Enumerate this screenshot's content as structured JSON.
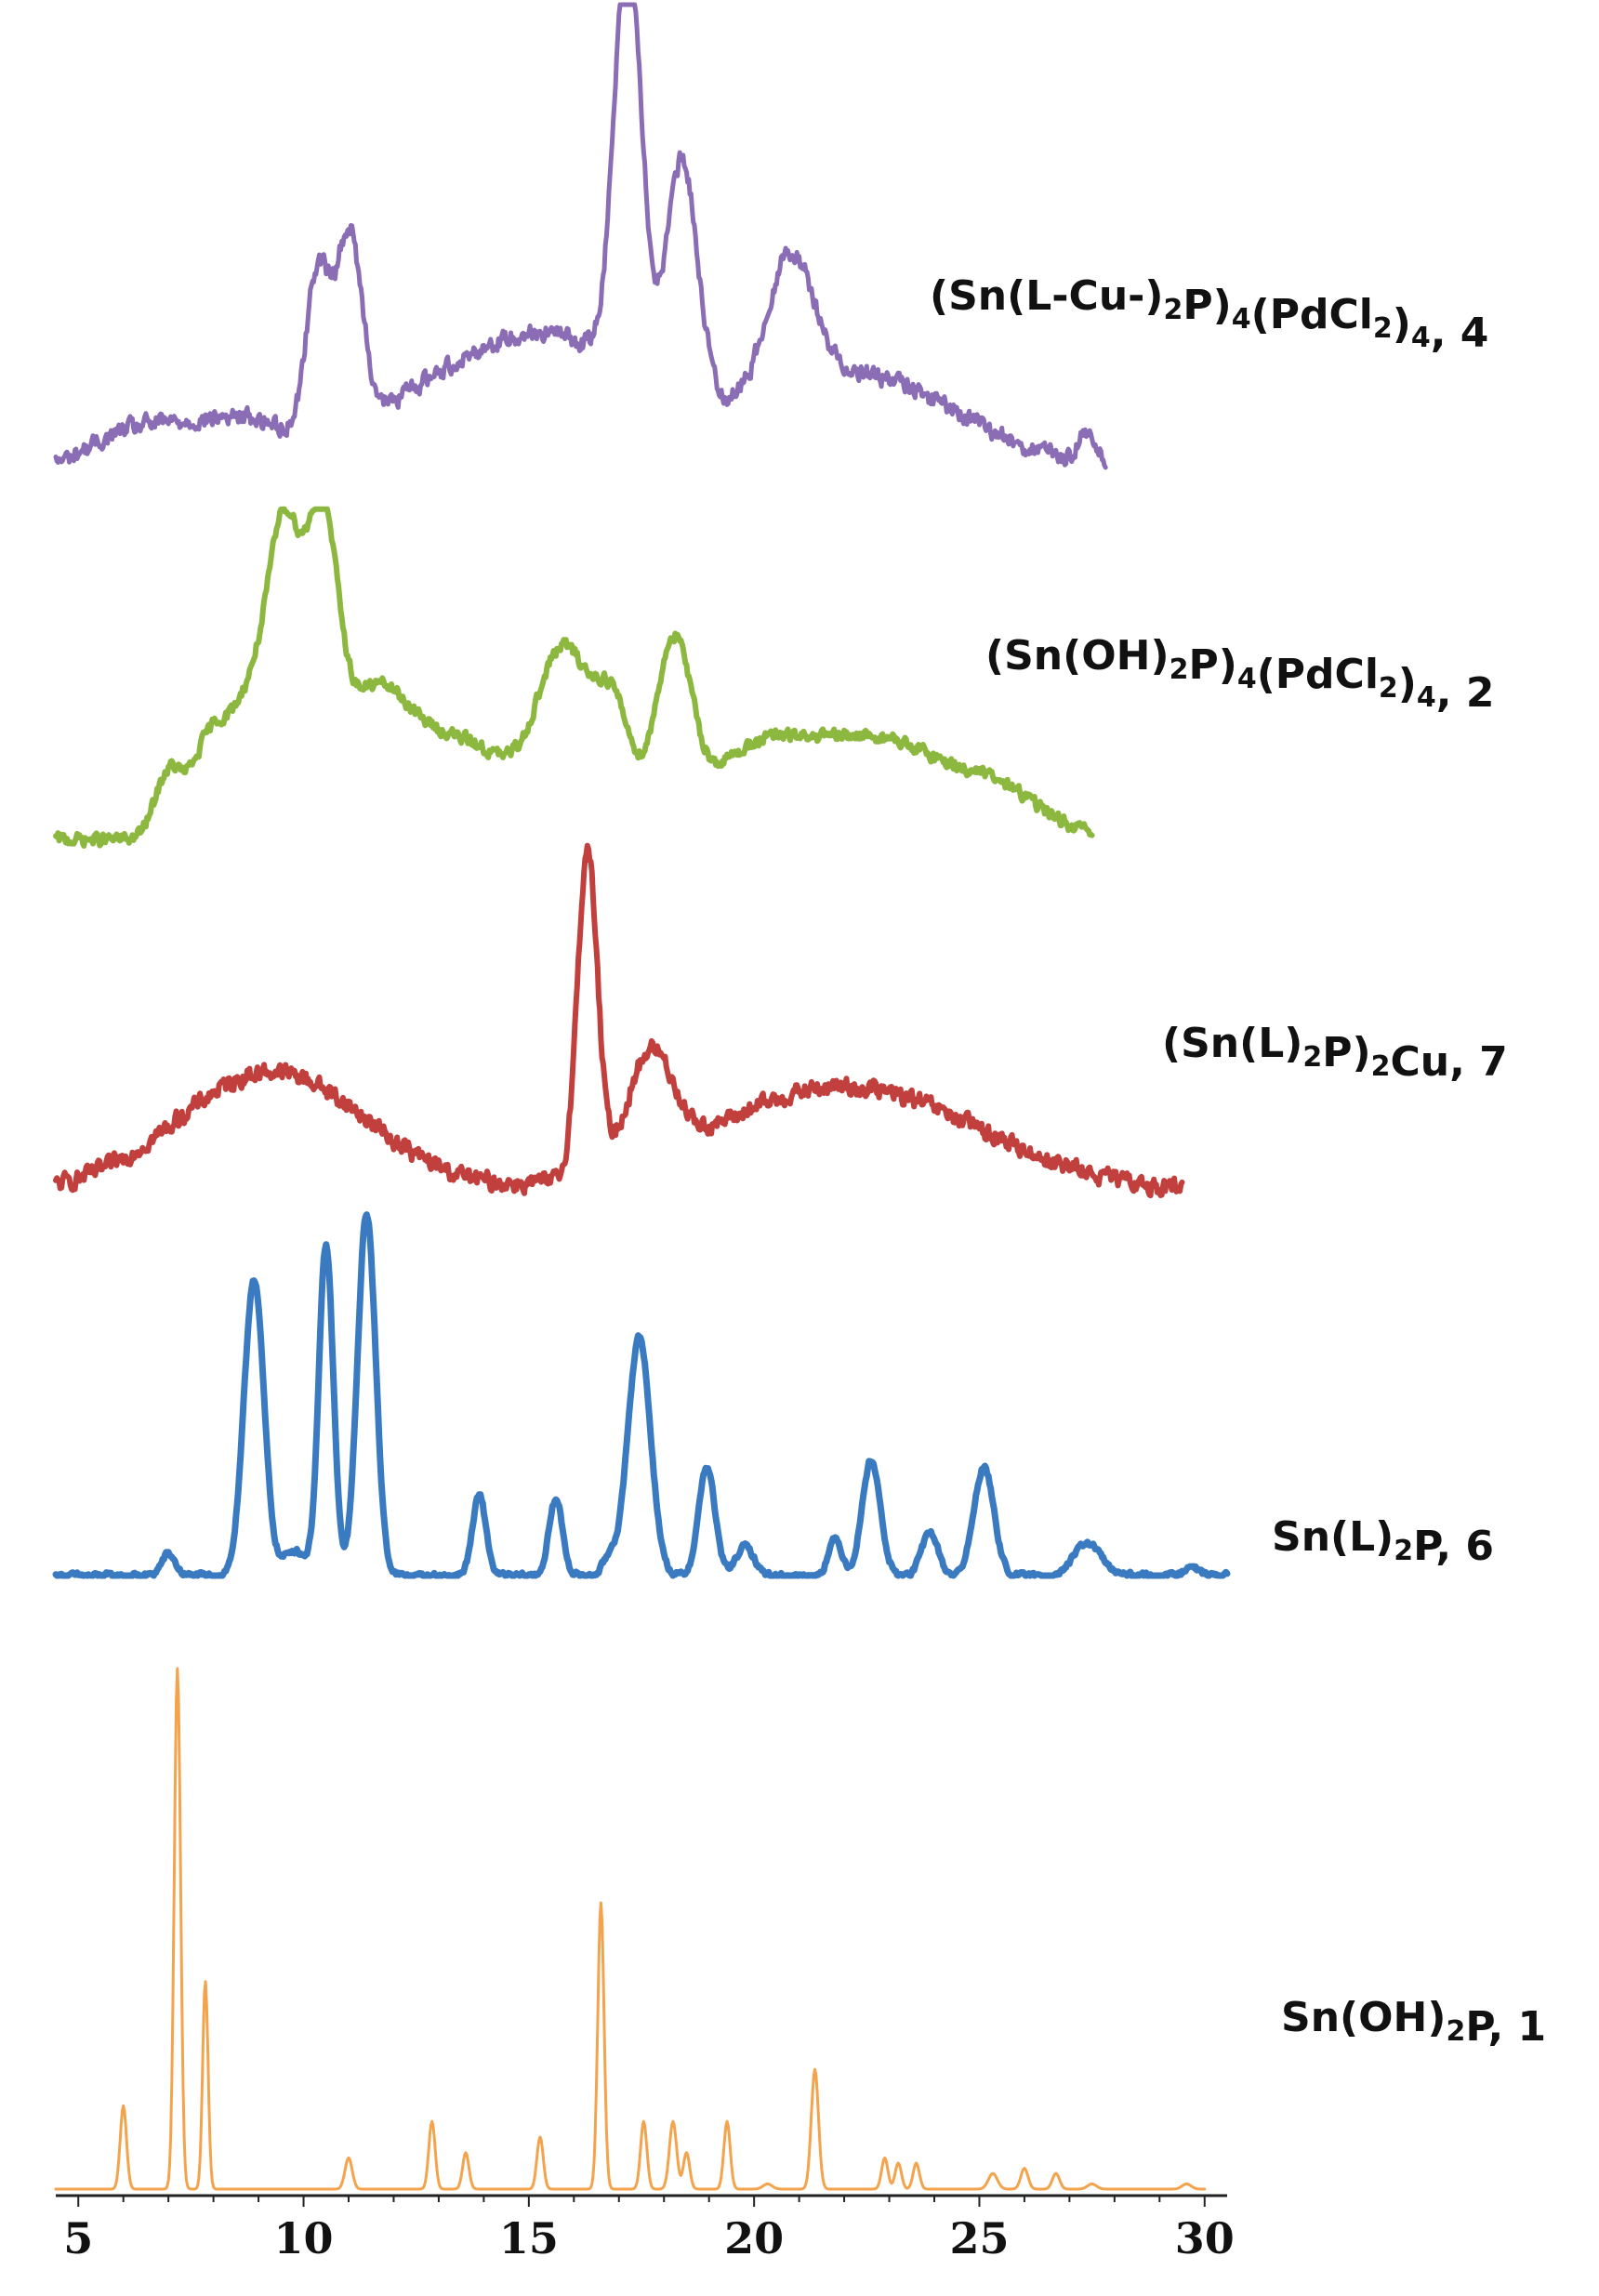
{
  "chart_data": {
    "type": "line",
    "title": "",
    "xlabel": "",
    "ylabel": "",
    "xlim": [
      4.5,
      30.5
    ],
    "xticks": [
      5,
      10,
      15,
      20,
      25,
      30
    ],
    "grid": false,
    "legend": "labels placed to the right of each trace",
    "series": [
      {
        "name": "Sn(OH)2P, 1",
        "label_parts": [
          [
            "Sn(OH)",
            ""
          ],
          [
            "2",
            "sub"
          ],
          [
            "P, 1",
            ""
          ]
        ],
        "color": "#F4A34D",
        "x_range": [
          4.5,
          30.0
        ],
        "baseline": 0.0,
        "noise": 0.0,
        "hump": 0.0,
        "peaks": [
          [
            6.0,
            0.16,
            0.07
          ],
          [
            7.2,
            1.0,
            0.07
          ],
          [
            7.82,
            0.4,
            0.06
          ],
          [
            11.0,
            0.06,
            0.08
          ],
          [
            12.85,
            0.13,
            0.07
          ],
          [
            13.6,
            0.07,
            0.07
          ],
          [
            15.25,
            0.1,
            0.07
          ],
          [
            16.6,
            0.55,
            0.07
          ],
          [
            17.55,
            0.13,
            0.07
          ],
          [
            18.2,
            0.13,
            0.08
          ],
          [
            18.5,
            0.07,
            0.07
          ],
          [
            19.4,
            0.13,
            0.07
          ],
          [
            20.3,
            0.01,
            0.1
          ],
          [
            21.35,
            0.23,
            0.08
          ],
          [
            22.9,
            0.06,
            0.07
          ],
          [
            23.2,
            0.05,
            0.07
          ],
          [
            23.6,
            0.05,
            0.07
          ],
          [
            25.3,
            0.03,
            0.1
          ],
          [
            26.0,
            0.04,
            0.08
          ],
          [
            26.7,
            0.03,
            0.08
          ],
          [
            27.5,
            0.01,
            0.1
          ],
          [
            29.6,
            0.01,
            0.1
          ]
        ],
        "ylim": [
          0,
          1.0
        ]
      },
      {
        "name": "Sn(L)2P, 6",
        "label_parts": [
          [
            "Sn(L)",
            ""
          ],
          [
            "2",
            "sub"
          ],
          [
            "P, 6",
            ""
          ]
        ],
        "color": "#3A7AC1",
        "x_range": [
          4.5,
          30.5
        ],
        "baseline": 0.0,
        "noise": 0.012,
        "hump": 0.0,
        "peaks": [
          [
            7.0,
            0.06,
            0.15
          ],
          [
            8.9,
            0.82,
            0.22
          ],
          [
            9.8,
            0.07,
            0.25
          ],
          [
            10.5,
            0.91,
            0.16
          ],
          [
            11.4,
            1.0,
            0.2
          ],
          [
            13.9,
            0.22,
            0.15
          ],
          [
            15.6,
            0.21,
            0.15
          ],
          [
            16.8,
            0.05,
            0.15
          ],
          [
            17.45,
            0.66,
            0.25
          ],
          [
            18.95,
            0.3,
            0.18
          ],
          [
            19.8,
            0.08,
            0.2
          ],
          [
            21.8,
            0.1,
            0.15
          ],
          [
            22.6,
            0.32,
            0.2
          ],
          [
            23.9,
            0.12,
            0.18
          ],
          [
            25.1,
            0.3,
            0.22
          ],
          [
            27.4,
            0.09,
            0.3
          ],
          [
            29.7,
            0.03,
            0.15
          ]
        ],
        "ylim": [
          0,
          1.0
        ]
      },
      {
        "name": "(Sn(L)2P)2Cu, 7",
        "label_parts": [
          [
            "(Sn(L)",
            ""
          ],
          [
            "2",
            "sub"
          ],
          [
            "P)",
            ""
          ],
          [
            "2",
            "sub"
          ],
          [
            "Cu, 7",
            ""
          ]
        ],
        "color": "#C1403D",
        "x_range": [
          4.5,
          29.5
        ],
        "baseline": 0.1,
        "noise": 0.035,
        "hump": 0.0,
        "peaks": [
          [
            9.3,
            0.32,
            2.1
          ],
          [
            16.3,
            0.85,
            0.22
          ],
          [
            17.7,
            0.28,
            0.5
          ],
          [
            22.0,
            0.28,
            3.0
          ]
        ],
        "ylim": [
          0,
          1.0
        ]
      },
      {
        "name": "(Sn(OH)2P)4(PdCl2)4, 2",
        "label_parts": [
          [
            "(Sn(OH)",
            ""
          ],
          [
            "2",
            "sub"
          ],
          [
            "P)",
            ""
          ],
          [
            "4",
            "sub"
          ],
          [
            "(PdCl",
            ""
          ],
          [
            "2",
            "sub"
          ],
          [
            ")",
            ""
          ],
          [
            "4",
            "sub"
          ],
          [
            ", 2",
            ""
          ]
        ],
        "color": "#8DB83F",
        "x_range": [
          4.5,
          27.5
        ],
        "baseline": 0.02,
        "noise": 0.03,
        "hump": 0.0,
        "peaks": [
          [
            7.0,
            0.2,
            0.3
          ],
          [
            7.9,
            0.28,
            0.4
          ],
          [
            8.9,
            0.45,
            0.5
          ],
          [
            9.6,
            0.78,
            0.35
          ],
          [
            10.4,
            0.85,
            0.35
          ],
          [
            11.5,
            0.4,
            0.8
          ],
          [
            13.5,
            0.3,
            1.2
          ],
          [
            15.8,
            0.55,
            0.6
          ],
          [
            16.9,
            0.35,
            0.4
          ],
          [
            18.2,
            0.55,
            0.4
          ],
          [
            20.0,
            0.25,
            1.2
          ],
          [
            22.8,
            0.3,
            1.5
          ],
          [
            25.5,
            0.12,
            1.0
          ]
        ],
        "ylim": [
          0,
          1.0
        ]
      },
      {
        "name": "(Sn(L-Cu-)2P)4(PdCl2)4, 4",
        "label_parts": [
          [
            "(Sn(L-Cu-)",
            ""
          ],
          [
            "2",
            "sub"
          ],
          [
            "P)",
            ""
          ],
          [
            "4",
            "sub"
          ],
          [
            "(PdCl",
            ""
          ],
          [
            "2",
            "sub"
          ],
          [
            ")",
            ""
          ],
          [
            "4",
            "sub"
          ],
          [
            ", 4",
            ""
          ]
        ],
        "color": "#8B6DB5",
        "x_range": [
          4.5,
          27.8
        ],
        "baseline": 0.04,
        "noise": 0.03,
        "hump": 0.0,
        "peaks": [
          [
            6.5,
            0.1,
            1.2
          ],
          [
            8.8,
            0.1,
            1.0
          ],
          [
            10.3,
            0.35,
            0.25
          ],
          [
            11.0,
            0.43,
            0.3
          ],
          [
            12.5,
            0.12,
            1.5
          ],
          [
            15.5,
            0.28,
            1.8
          ],
          [
            17.2,
            0.95,
            0.3
          ],
          [
            18.4,
            0.52,
            0.35
          ],
          [
            20.8,
            0.28,
            0.5
          ],
          [
            22.0,
            0.22,
            2.5
          ],
          [
            27.4,
            0.07,
            0.2
          ]
        ],
        "ylim": [
          0,
          1.0
        ]
      }
    ]
  }
}
